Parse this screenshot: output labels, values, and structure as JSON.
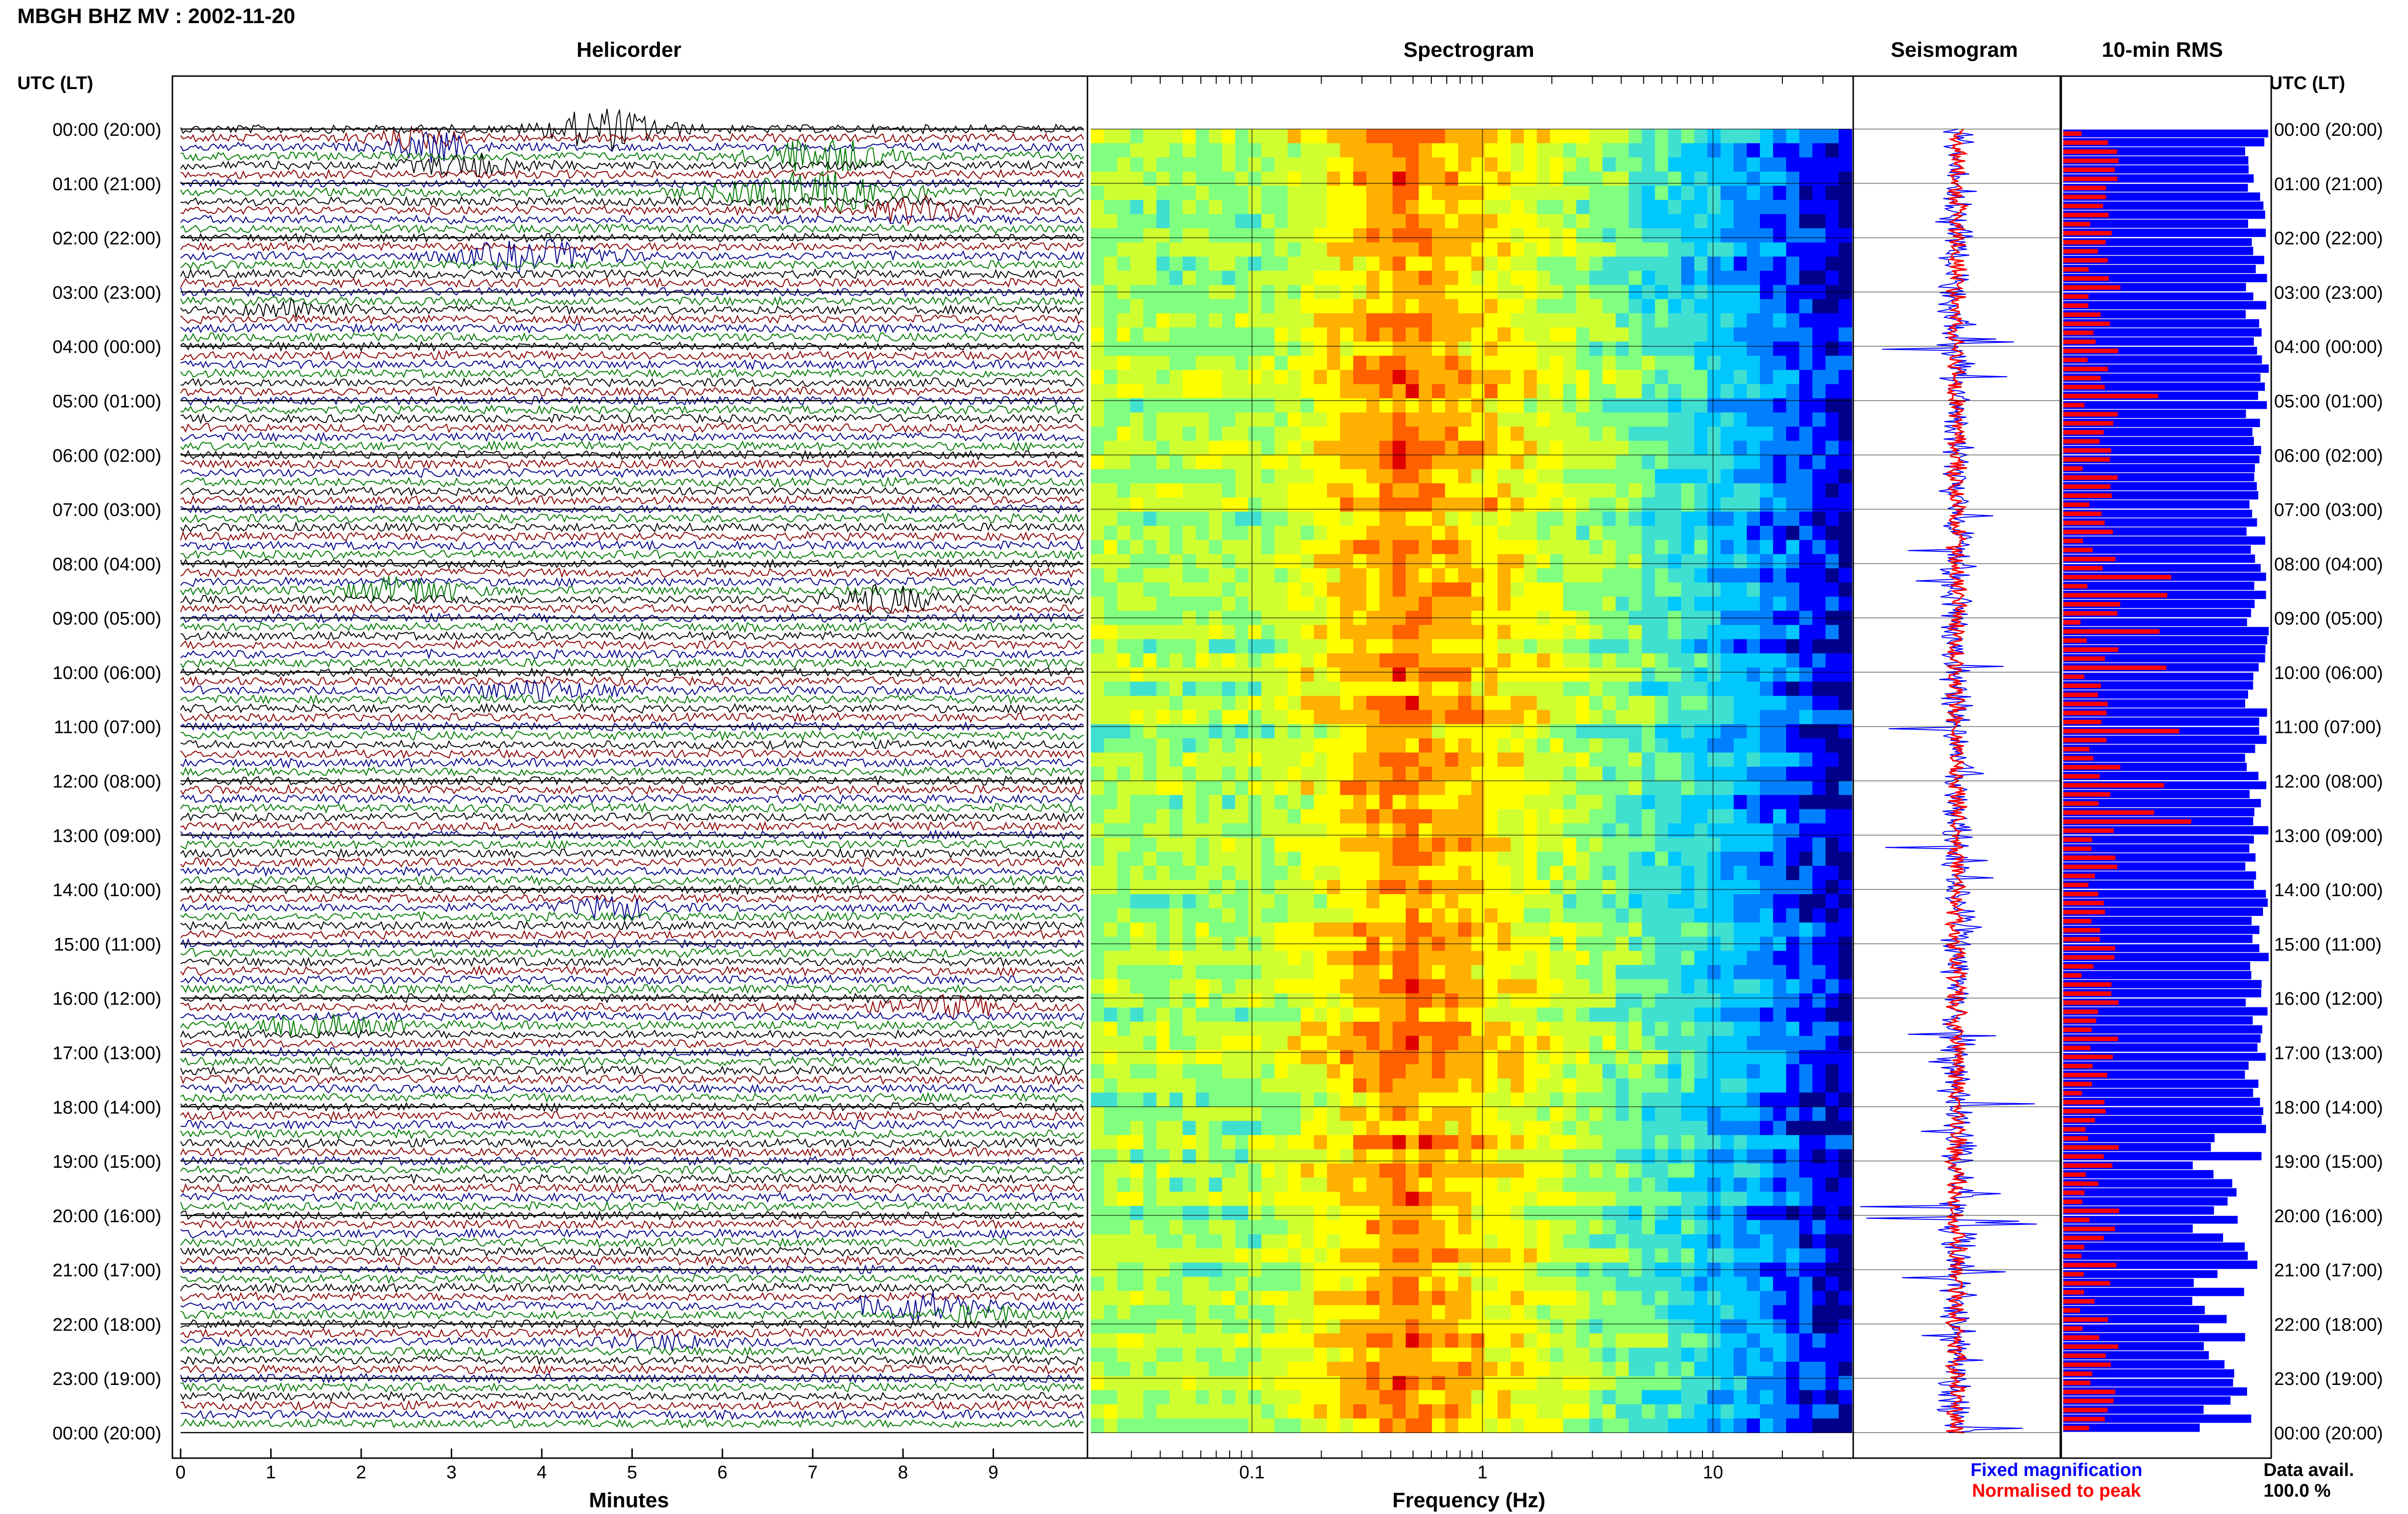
{
  "title": "MBGH BHZ MV : 2002-11-20",
  "colors": {
    "black": "#000000",
    "red": "#8b0000",
    "blue": "#00008b",
    "green": "#007a00",
    "fixed": "#0000ff",
    "peak": "#ff0000"
  },
  "chart_data": [
    {
      "type": "line",
      "title": "Helicorder",
      "ylabel": "UTC (LT)",
      "xlabel": "Minutes",
      "x_ticks": [
        "0",
        "1",
        "2",
        "3",
        "4",
        "5",
        "6",
        "7",
        "8",
        "9"
      ],
      "xlim": [
        0,
        10
      ],
      "hour_labels": [
        "00:00 (20:00)",
        "01:00 (21:00)",
        "02:00 (22:00)",
        "03:00 (23:00)",
        "04:00 (00:00)",
        "05:00 (01:00)",
        "06:00 (02:00)",
        "07:00 (03:00)",
        "08:00 (04:00)",
        "09:00 (05:00)",
        "10:00 (06:00)",
        "11:00 (07:00)",
        "12:00 (08:00)",
        "13:00 (09:00)",
        "14:00 (10:00)",
        "15:00 (11:00)",
        "16:00 (12:00)",
        "17:00 (13:00)",
        "18:00 (14:00)",
        "19:00 (15:00)",
        "20:00 (16:00)",
        "21:00 (17:00)",
        "22:00 (18:00)",
        "23:00 (19:00)",
        "00:00 (20:00)"
      ],
      "trace_colors": [
        "black",
        "red",
        "blue",
        "green"
      ],
      "events": [
        {
          "trace": 0,
          "minute": 4.7,
          "amp": 1.6,
          "width": 0.6
        },
        {
          "trace": 1,
          "minute": 2.6,
          "amp": 0.7,
          "width": 0.5
        },
        {
          "trace": 2,
          "minute": 2.8,
          "amp": 1.1,
          "width": 0.4
        },
        {
          "trace": 3,
          "minute": 7.1,
          "amp": 1.4,
          "width": 0.6
        },
        {
          "trace": 4,
          "minute": 3.2,
          "amp": 0.8,
          "width": 0.6
        },
        {
          "trace": 7,
          "minute": 7.0,
          "amp": 1.7,
          "width": 0.9
        },
        {
          "trace": 9,
          "minute": 8.2,
          "amp": 1.0,
          "width": 0.5
        },
        {
          "trace": 14,
          "minute": 3.9,
          "amp": 1.1,
          "width": 0.8
        },
        {
          "trace": 20,
          "minute": 1.3,
          "amp": 0.7,
          "width": 0.5
        },
        {
          "trace": 51,
          "minute": 2.5,
          "amp": 1.0,
          "width": 0.6
        },
        {
          "trace": 52,
          "minute": 7.8,
          "amp": 1.0,
          "width": 0.6
        },
        {
          "trace": 62,
          "minute": 3.9,
          "amp": 0.7,
          "width": 0.7
        },
        {
          "trace": 86,
          "minute": 4.8,
          "amp": 0.8,
          "width": 0.5
        },
        {
          "trace": 97,
          "minute": 8.5,
          "amp": 0.7,
          "width": 0.6
        },
        {
          "trace": 99,
          "minute": 1.6,
          "amp": 0.7,
          "width": 0.7
        },
        {
          "trace": 130,
          "minute": 8.1,
          "amp": 1.1,
          "width": 0.6
        },
        {
          "trace": 131,
          "minute": 8.9,
          "amp": 0.7,
          "width": 0.4
        },
        {
          "trace": 134,
          "minute": 5.4,
          "amp": 0.5,
          "width": 0.6
        }
      ]
    },
    {
      "type": "heatmap",
      "title": "Spectrogram",
      "xlabel": "Frequency (Hz)",
      "x_scale": "log",
      "xlim": [
        0.02,
        40
      ],
      "x_ticks": [
        {
          "value": 0.1,
          "label": "0.1"
        },
        {
          "value": 1,
          "label": "1"
        },
        {
          "value": 10,
          "label": "10"
        }
      ]
    },
    {
      "type": "line",
      "title": "Seismogram"
    },
    {
      "type": "bar",
      "title": "10-min RMS",
      "bins": 144,
      "series": [
        {
          "name": "Fixed magnification",
          "color": "#0000ff"
        },
        {
          "name": "Normalised to peak",
          "color": "#ff0000"
        }
      ]
    }
  ],
  "legend": {
    "fixed_label": "Fixed magnification",
    "peak_label": "Normalised to peak"
  },
  "data_avail": {
    "label": "Data avail.",
    "value": "100.0 %"
  }
}
